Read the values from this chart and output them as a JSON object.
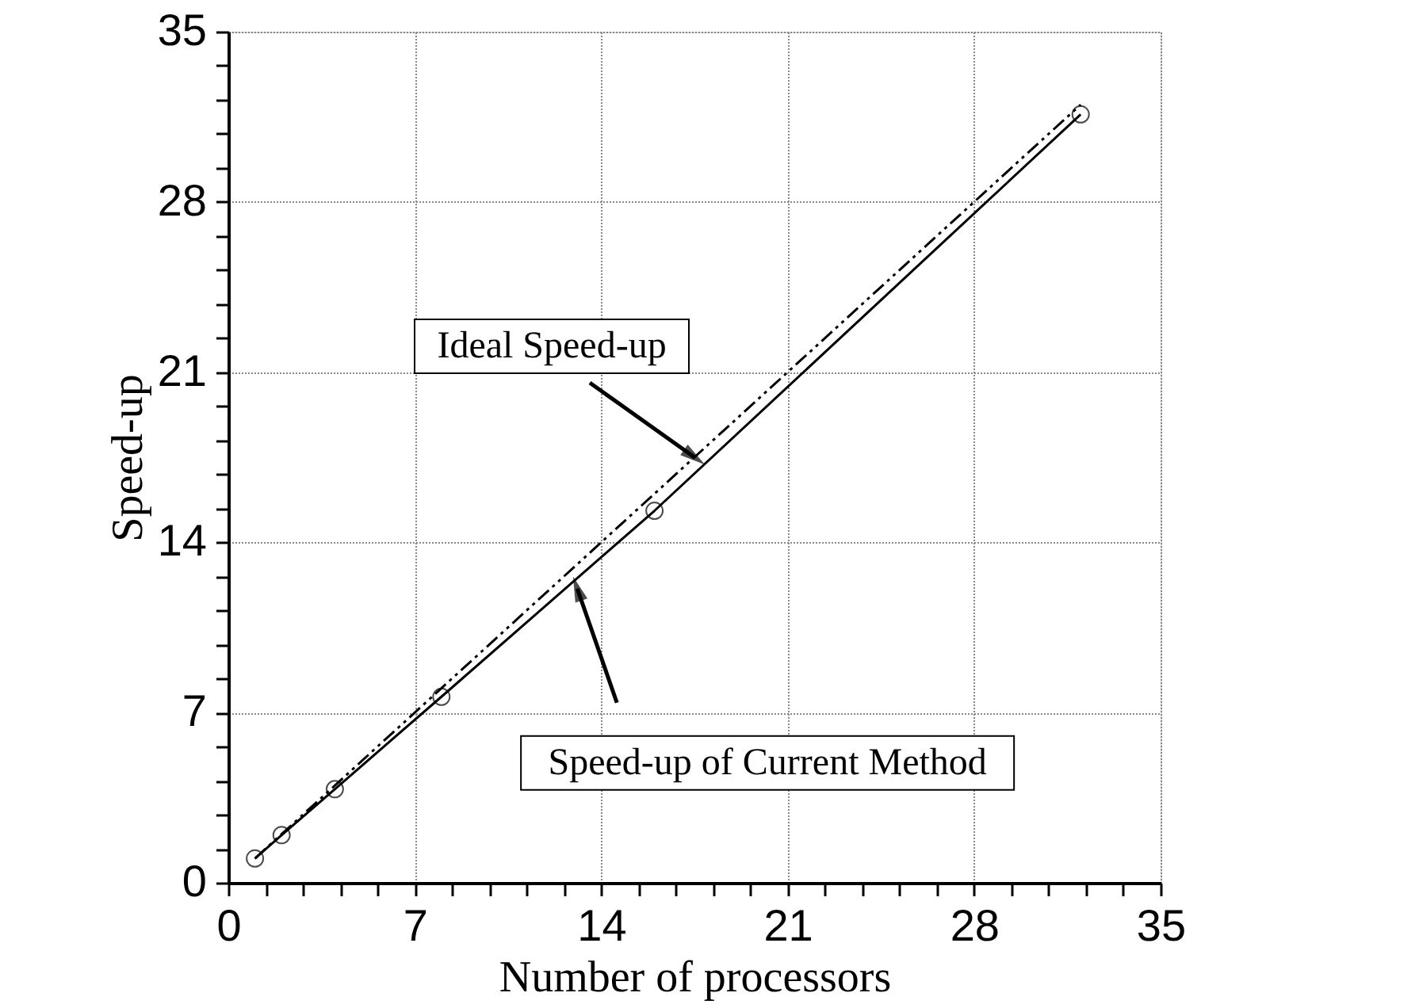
{
  "chart_data": {
    "type": "line",
    "xlabel": "Number of processors",
    "ylabel": "Speed-up",
    "series": [
      {
        "color": "#000000",
        "line_style": "dashed",
        "x": [
          1,
          32
        ],
        "values": [
          1,
          32
        ]
      },
      {
        "color": "#000000",
        "line_style": "solid",
        "marker": "circle",
        "x": [
          1,
          2,
          4,
          8,
          16,
          32
        ],
        "values": [
          1.0,
          1.96,
          3.85,
          7.65,
          15.3,
          31.6
        ]
      }
    ],
    "annotations": [
      {
        "text": "Ideal Speed-up",
        "x": 17.5,
        "y": 17.5
      },
      {
        "text": "Speed-up of Current Method",
        "x": 13.1,
        "y": 12.1
      }
    ],
    "xlim": [
      0,
      35
    ],
    "ylim": [
      0,
      35
    ],
    "xticks": [
      0,
      {
        "value": 1.4,
        "label": null
      },
      {
        "value": 2.8,
        "label": null
      },
      {
        "value": 4.2,
        "label": null
      },
      {
        "value": 5.6,
        "label": null
      },
      7,
      {
        "value": 8.4,
        "label": null
      },
      {
        "value": 9.8,
        "label": null
      },
      {
        "value": 11.2,
        "label": null
      },
      {
        "value": 12.6,
        "label": null
      },
      14,
      {
        "value": 15.4,
        "label": null
      },
      {
        "value": 16.8,
        "label": null
      },
      {
        "value": 18.2,
        "label": null
      },
      {
        "value": 19.6,
        "label": null
      },
      21,
      {
        "value": 22.4,
        "label": null
      },
      {
        "value": 23.8,
        "label": null
      },
      {
        "value": 25.2,
        "label": null
      },
      {
        "value": 26.6,
        "label": null
      },
      28,
      {
        "value": 29.4,
        "label": null
      },
      {
        "value": 30.8,
        "label": null
      },
      {
        "value": 32.2,
        "label": null
      },
      {
        "value": 33.6,
        "label": null
      },
      35
    ],
    "yticks": [
      0,
      {
        "value": 1.4,
        "label": null
      },
      {
        "value": 2.8,
        "label": null
      },
      {
        "value": 4.2,
        "label": null
      },
      {
        "value": 5.6,
        "label": null
      },
      7,
      {
        "value": 8.4,
        "label": null
      },
      {
        "value": 9.8,
        "label": null
      },
      {
        "value": 11.2,
        "label": null
      },
      {
        "value": 12.6,
        "label": null
      },
      14,
      {
        "value": 15.4,
        "label": null
      },
      {
        "value": 16.8,
        "label": null
      },
      {
        "value": 18.2,
        "label": null
      },
      {
        "value": 19.6,
        "label": null
      },
      21,
      {
        "value": 22.4,
        "label": null
      },
      {
        "value": 23.8,
        "label": null
      },
      {
        "value": 25.2,
        "label": null
      },
      {
        "value": 26.6,
        "label": null
      },
      28,
      {
        "value": 29.4,
        "label": null
      },
      {
        "value": 30.8,
        "label": null
      },
      {
        "value": 32.2,
        "label": null
      },
      {
        "value": 33.6,
        "label": null
      },
      35
    ],
    "grid": true
  }
}
